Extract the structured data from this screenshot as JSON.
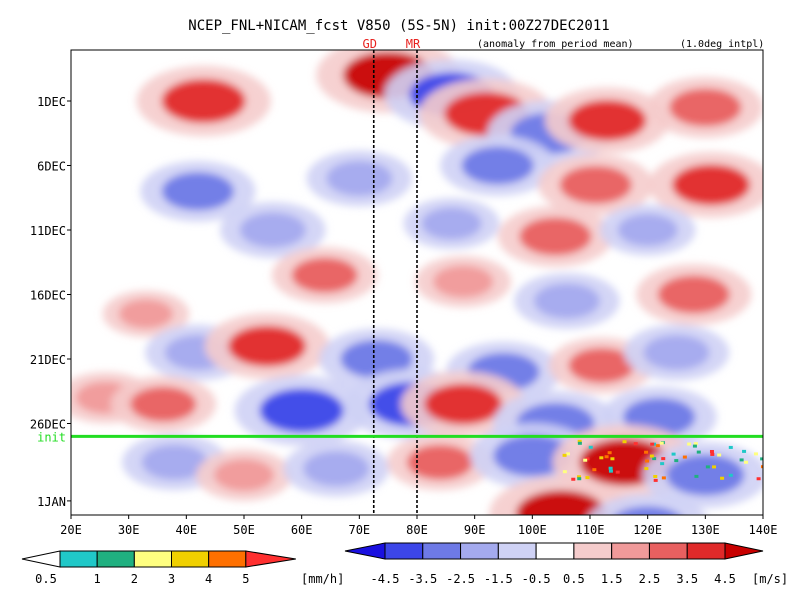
{
  "chart_data": {
    "type": "heatmap",
    "title": "NCEP_FNL+NICAM_fcst V850 (5S-5N) init:00Z27DEC2011",
    "subtitle_left": "(anomaly from period mean)",
    "subtitle_right": "(1.0deg intpl)",
    "xlabel": "",
    "ylabel": "",
    "x_ticks": [
      "20E",
      "30E",
      "40E",
      "50E",
      "60E",
      "70E",
      "80E",
      "90E",
      "100E",
      "110E",
      "120E",
      "130E",
      "140E"
    ],
    "x_range": [
      20,
      140
    ],
    "y_ticks": [
      {
        "label": "1DEC",
        "day": 1
      },
      {
        "label": "6DEC",
        "day": 6
      },
      {
        "label": "11DEC",
        "day": 11
      },
      {
        "label": "16DEC",
        "day": 16
      },
      {
        "label": "21DEC",
        "day": 21
      },
      {
        "label": "26DEC",
        "day": 26
      },
      {
        "label": "1JAN",
        "day": 32
      }
    ],
    "y_range_days": [
      27.6,
      36.1
    ],
    "grid": false,
    "markers": [
      {
        "label": "GD",
        "lon": 72.5,
        "color": "#e8221f"
      },
      {
        "label": "MR",
        "lon": 80,
        "color": "#e8221f"
      }
    ],
    "init_line": {
      "label": "init",
      "day": 27,
      "color": "#22dd22"
    },
    "anomaly_patches": [
      {
        "lon": 43,
        "day": 1.0,
        "value": 4.0
      },
      {
        "lon": 75,
        "day": -1.0,
        "value": 4.5
      },
      {
        "lon": 86,
        "day": 0.5,
        "value": -4.0
      },
      {
        "lon": 92,
        "day": 2.0,
        "value": 4.0
      },
      {
        "lon": 103,
        "day": 3.5,
        "value": -3.5
      },
      {
        "lon": 113,
        "day": 2.5,
        "value": 3.5
      },
      {
        "lon": 130,
        "day": 1.5,
        "value": 3.0
      },
      {
        "lon": 42,
        "day": 8.0,
        "value": -3.0
      },
      {
        "lon": 70,
        "day": 7.0,
        "value": -2.5
      },
      {
        "lon": 94,
        "day": 6.0,
        "value": -3.0
      },
      {
        "lon": 111,
        "day": 7.5,
        "value": 3.0
      },
      {
        "lon": 131,
        "day": 7.5,
        "value": 3.5
      },
      {
        "lon": 55,
        "day": 11.0,
        "value": -2.5
      },
      {
        "lon": 86,
        "day": 10.5,
        "value": -2.0
      },
      {
        "lon": 104,
        "day": 11.5,
        "value": 3.0
      },
      {
        "lon": 120,
        "day": 11.0,
        "value": -2.0
      },
      {
        "lon": 64,
        "day": 14.5,
        "value": 2.5
      },
      {
        "lon": 88,
        "day": 15.0,
        "value": 2.0
      },
      {
        "lon": 106,
        "day": 16.5,
        "value": -2.5
      },
      {
        "lon": 128,
        "day": 16.0,
        "value": 3.0
      },
      {
        "lon": 33,
        "day": 17.5,
        "value": 1.5
      },
      {
        "lon": 42,
        "day": 20.5,
        "value": -2.5
      },
      {
        "lon": 54,
        "day": 20.0,
        "value": 3.5
      },
      {
        "lon": 73,
        "day": 21.0,
        "value": -3.0
      },
      {
        "lon": 95,
        "day": 22.0,
        "value": -3.0
      },
      {
        "lon": 112,
        "day": 21.5,
        "value": 2.5
      },
      {
        "lon": 125,
        "day": 20.5,
        "value": -2.5
      },
      {
        "lon": 26,
        "day": 24.0,
        "value": 2.0
      },
      {
        "lon": 36,
        "day": 24.5,
        "value": 2.5
      },
      {
        "lon": 60,
        "day": 25.0,
        "value": -4.0
      },
      {
        "lon": 79,
        "day": 24.5,
        "value": -4.0
      },
      {
        "lon": 88,
        "day": 24.5,
        "value": 3.5
      },
      {
        "lon": 104,
        "day": 26.0,
        "value": -3.5
      },
      {
        "lon": 122,
        "day": 25.5,
        "value": -3.0
      },
      {
        "lon": 38,
        "day": 29.0,
        "value": -2.5
      },
      {
        "lon": 50,
        "day": 30.0,
        "value": 2.0
      },
      {
        "lon": 66,
        "day": 29.5,
        "value": -2.5
      },
      {
        "lon": 84,
        "day": 29.0,
        "value": 2.5
      },
      {
        "lon": 100,
        "day": 28.5,
        "value": -3.5
      },
      {
        "lon": 116,
        "day": 29.0,
        "value": 4.5
      },
      {
        "lon": 105,
        "day": 33.0,
        "value": 4.5
      },
      {
        "lon": 130,
        "day": 30.0,
        "value": -3.5
      },
      {
        "lon": 120,
        "day": 34.0,
        "value": -3.5
      }
    ],
    "legends": [
      {
        "name": "precip",
        "unit": "[mm/h]",
        "tick_labels": [
          "0.5",
          "1",
          "2",
          "3",
          "4",
          "5"
        ],
        "colors": [
          "#20c8c8",
          "#20b080",
          "#ffff80",
          "#f0d000",
          "#ff7000",
          "#ff3030"
        ]
      },
      {
        "name": "v850",
        "unit": "[m/s]",
        "tick_labels": [
          "-4.5",
          "-3.5",
          "-2.5",
          "-1.5",
          "-0.5",
          "0.5",
          "1.5",
          "2.5",
          "3.5",
          "4.5"
        ],
        "colors": [
          "#1a10e0",
          "#3c46e8",
          "#6e7ae6",
          "#a4aaee",
          "#cfd2f5",
          "#ffffff",
          "#f5cccc",
          "#f09a9a",
          "#e86060",
          "#e02a2a",
          "#c80000"
        ]
      }
    ]
  }
}
